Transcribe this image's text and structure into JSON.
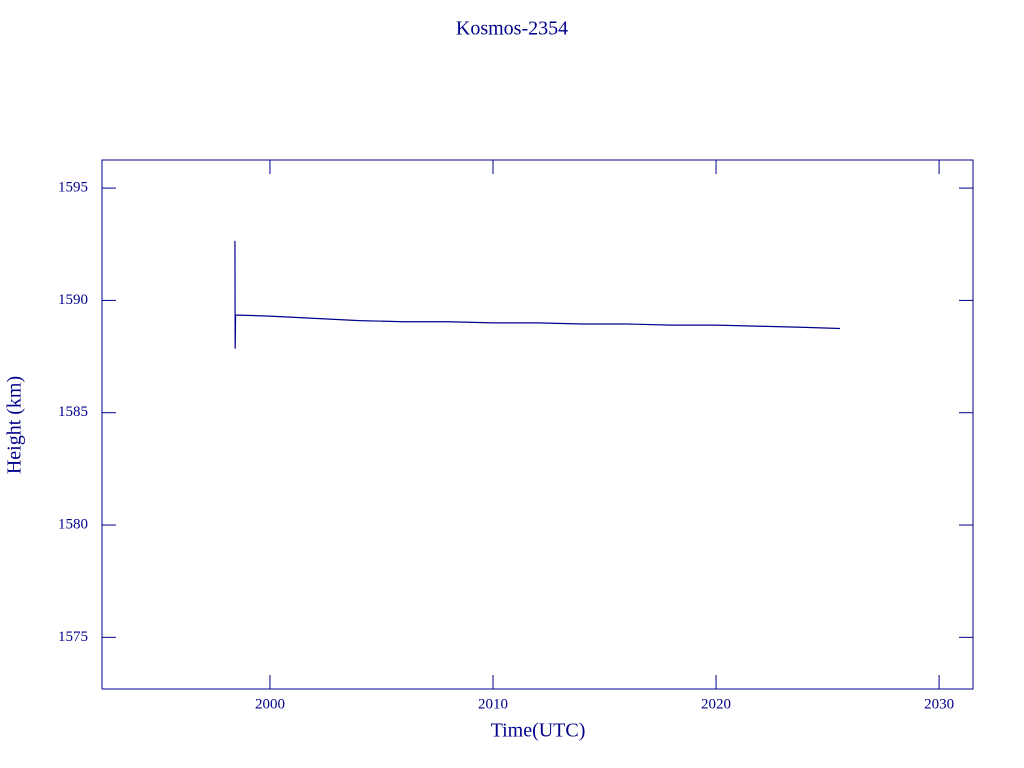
{
  "chart_data": {
    "type": "line",
    "title": "Kosmos-2354",
    "xlabel": "Time(UTC)",
    "ylabel": "Height (km)",
    "x": [
      1998.43,
      1998.44,
      1998.46,
      2000,
      2002,
      2004,
      2006,
      2008,
      2010,
      2012,
      2014,
      2016,
      2018,
      2020,
      2022,
      2024,
      2025.56
    ],
    "series": [
      {
        "color": "#00008b",
        "values": [
          1592.65,
          1587.85,
          1589.35,
          1589.3,
          1589.2,
          1589.1,
          1589.05,
          1589.05,
          1589.0,
          1589.0,
          1588.95,
          1588.95,
          1588.9,
          1588.9,
          1588.85,
          1588.8,
          1588.75
        ]
      }
    ],
    "xlim": [
      1992.47,
      2031.52
    ],
    "xticks": [
      2000,
      2010,
      2020,
      2030
    ],
    "ylim": [
      1572.7,
      1596.25
    ],
    "yticks": [
      1575,
      1580,
      1585,
      1590,
      1595
    ]
  }
}
